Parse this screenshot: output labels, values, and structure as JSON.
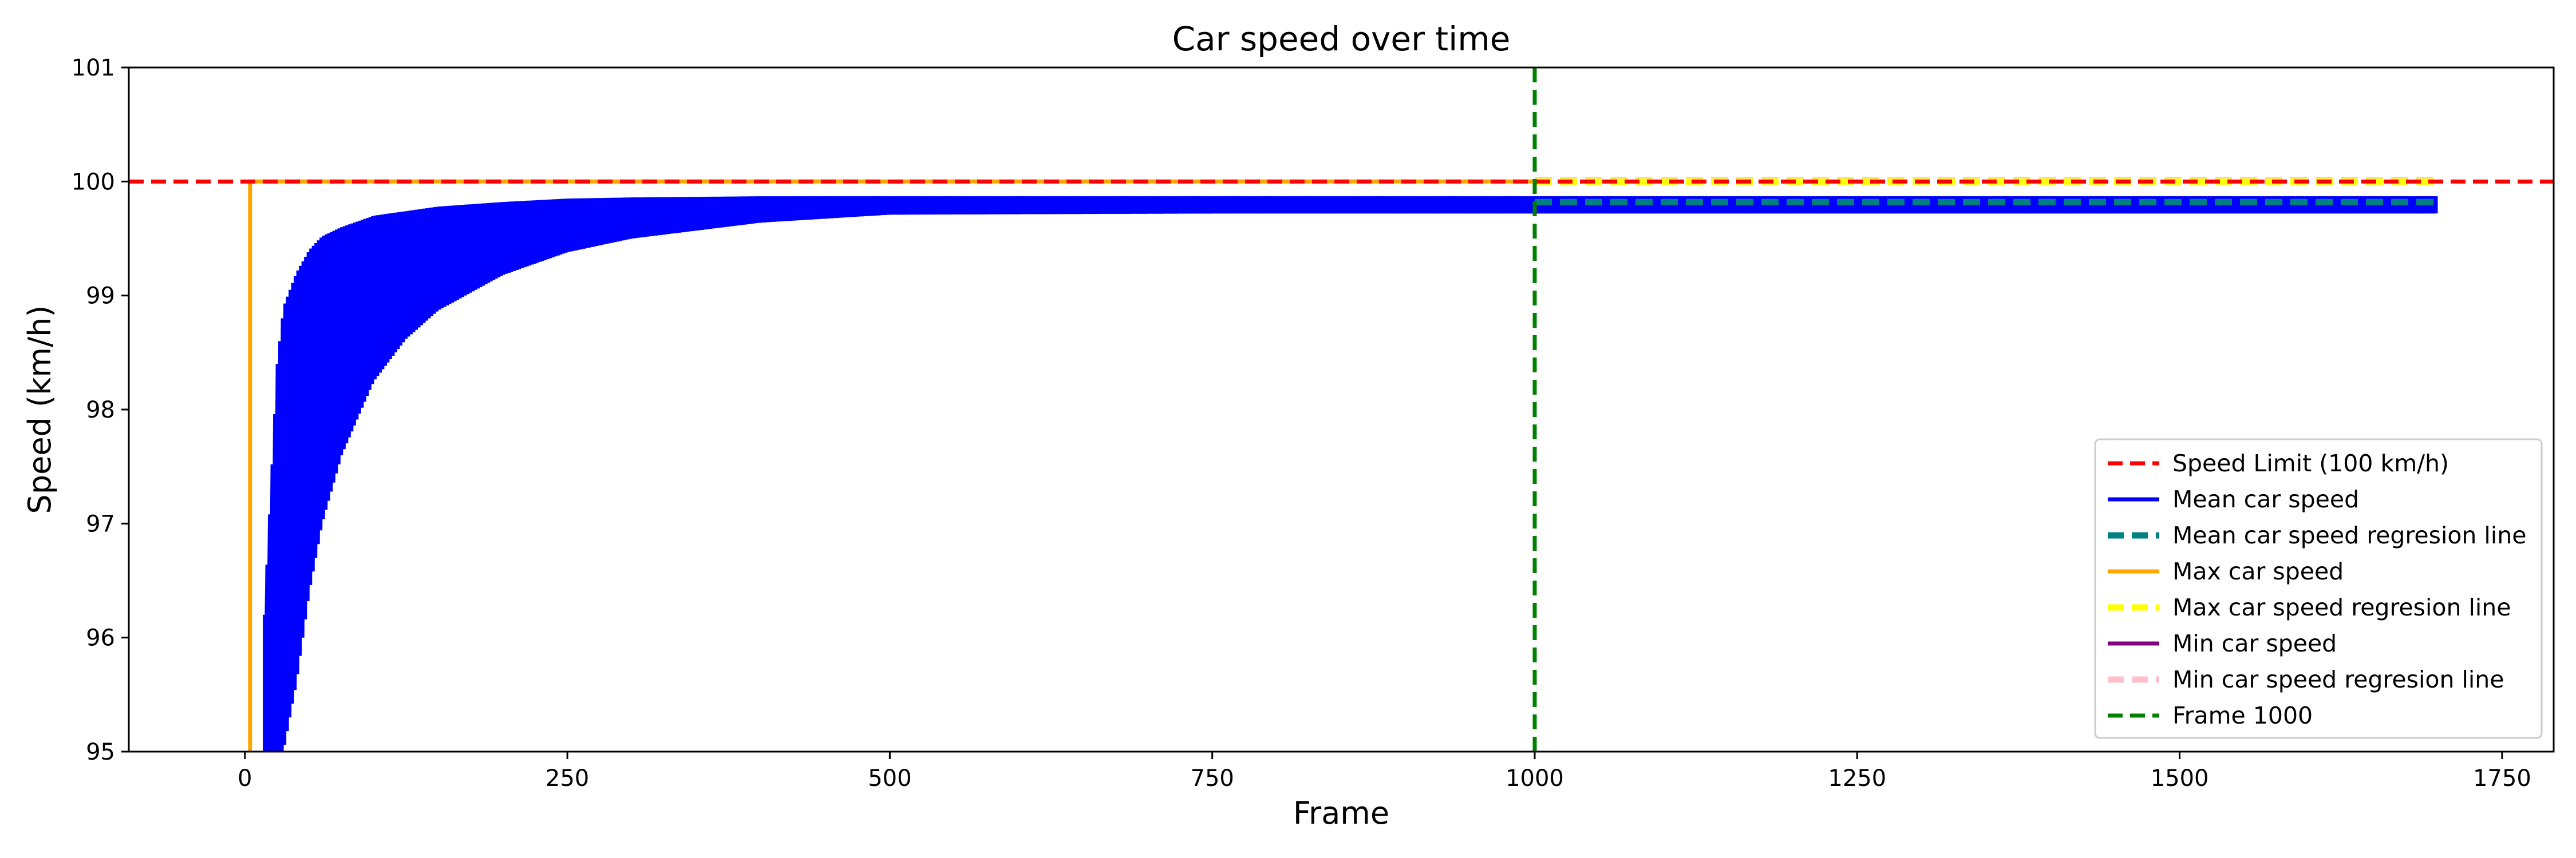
{
  "chart_data": {
    "type": "line",
    "title": "Car speed over time",
    "xlabel": "Frame",
    "ylabel": "Speed (km/h)",
    "xlim": [
      -90,
      1790
    ],
    "ylim": [
      95,
      101
    ],
    "xticks": [
      0,
      250,
      500,
      750,
      1000,
      1250,
      1500,
      1750
    ],
    "yticks": [
      95,
      96,
      97,
      98,
      99,
      100,
      101
    ],
    "grid": false,
    "legend_position": "lower-right",
    "legend": [
      {
        "label": "Speed Limit (100 km/h)",
        "color": "#ff0000",
        "style": "dashed"
      },
      {
        "label": "Mean car speed",
        "color": "#0000ff",
        "style": "solid"
      },
      {
        "label": "Mean car speed regresion line",
        "color": "#008080",
        "style": "dashed"
      },
      {
        "label": "Max car speed",
        "color": "#ffa500",
        "style": "solid"
      },
      {
        "label": "Max car speed regresion line",
        "color": "#ffff00",
        "style": "dashed"
      },
      {
        "label": "Min car speed",
        "color": "#800080",
        "style": "solid"
      },
      {
        "label": "Min car speed regresion line",
        "color": "#ffc0cb",
        "style": "dashed"
      },
      {
        "label": "Frame 1000",
        "color": "#008000",
        "style": "dashed"
      }
    ],
    "series": [
      {
        "name": "Speed Limit (100 km/h)",
        "kind": "hline",
        "y": 100,
        "color": "#ff0000"
      },
      {
        "name": "Mean car speed",
        "kind": "oscillating-envelope",
        "color": "#0000ff",
        "x": [
          15,
          20,
          25,
          30,
          40,
          50,
          60,
          75,
          100,
          125,
          150,
          200,
          250,
          300,
          400,
          500,
          750,
          1000,
          1250,
          1500,
          1700
        ],
        "upper": [
          96.2,
          97.3,
          98.4,
          98.9,
          99.2,
          99.4,
          99.52,
          99.6,
          99.7,
          99.74,
          99.78,
          99.82,
          99.85,
          99.86,
          99.87,
          99.87,
          99.87,
          99.87,
          99.87,
          99.87,
          99.87
        ],
        "lower": [
          95.0,
          95.0,
          95.0,
          95.0,
          95.6,
          96.4,
          97.0,
          97.6,
          98.25,
          98.62,
          98.87,
          99.18,
          99.38,
          99.5,
          99.64,
          99.71,
          99.72,
          99.72,
          99.72,
          99.72,
          99.72
        ]
      },
      {
        "name": "Mean car speed regresion line",
        "kind": "segment",
        "x": [
          1000,
          1700
        ],
        "y": [
          99.82,
          99.82
        ],
        "color": "#008080"
      },
      {
        "name": "Max car speed",
        "kind": "polyline",
        "x": [
          4,
          4,
          1000
        ],
        "y": [
          95,
          100,
          100
        ],
        "color": "#ffa500"
      },
      {
        "name": "Max car speed regresion line",
        "kind": "segment",
        "x": [
          1000,
          1700
        ],
        "y": [
          100,
          100
        ],
        "color": "#ffff00"
      },
      {
        "name": "Min car speed regresion line",
        "kind": "segment",
        "x": [
          1000,
          1700
        ],
        "y": [
          100.01,
          100.01
        ],
        "color": "#ffc0cb"
      },
      {
        "name": "Frame 1000",
        "kind": "vline",
        "x": 1000,
        "color": "#008000"
      }
    ]
  }
}
